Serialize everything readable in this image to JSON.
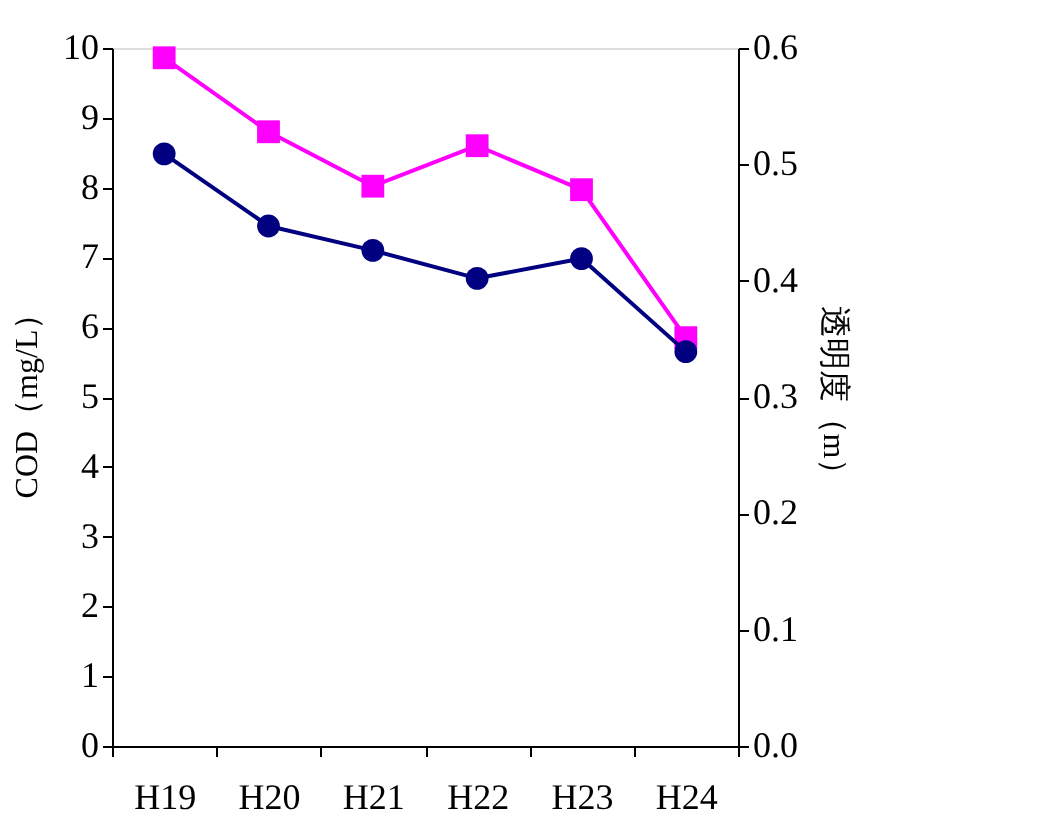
{
  "chart_data": {
    "type": "line",
    "categories": [
      "H19",
      "H20",
      "H21",
      "H22",
      "H23",
      "H24"
    ],
    "ylabel": "COD（mg/L）",
    "y2label": "透明度（m）",
    "ylim": [
      0,
      10
    ],
    "yticks": [
      0,
      1,
      2,
      3,
      4,
      5,
      6,
      7,
      8,
      9,
      10
    ],
    "y2lim": [
      0,
      0.6
    ],
    "y2ticks": [
      {
        "value": 0,
        "label": "0.0"
      },
      {
        "value": 0.1,
        "label": "0.1"
      },
      {
        "value": 0.2,
        "label": "0.2"
      },
      {
        "value": 0.3,
        "label": "0.3"
      },
      {
        "value": 0.4,
        "label": "0.4"
      },
      {
        "value": 0.5,
        "label": "0.5"
      },
      {
        "value": 0.6,
        "label": "0.6"
      }
    ],
    "series": [
      {
        "color": "#ff00ff",
        "marker": "square",
        "values": [
          9.86,
          8.8,
          8.02,
          8.6,
          7.97,
          5.85
        ]
      },
      {
        "color": "#000080",
        "marker": "circle",
        "axis": "y2",
        "values": [
          0.509,
          0.447,
          0.426,
          0.402,
          0.419,
          0.339
        ]
      }
    ],
    "grid": false
  }
}
